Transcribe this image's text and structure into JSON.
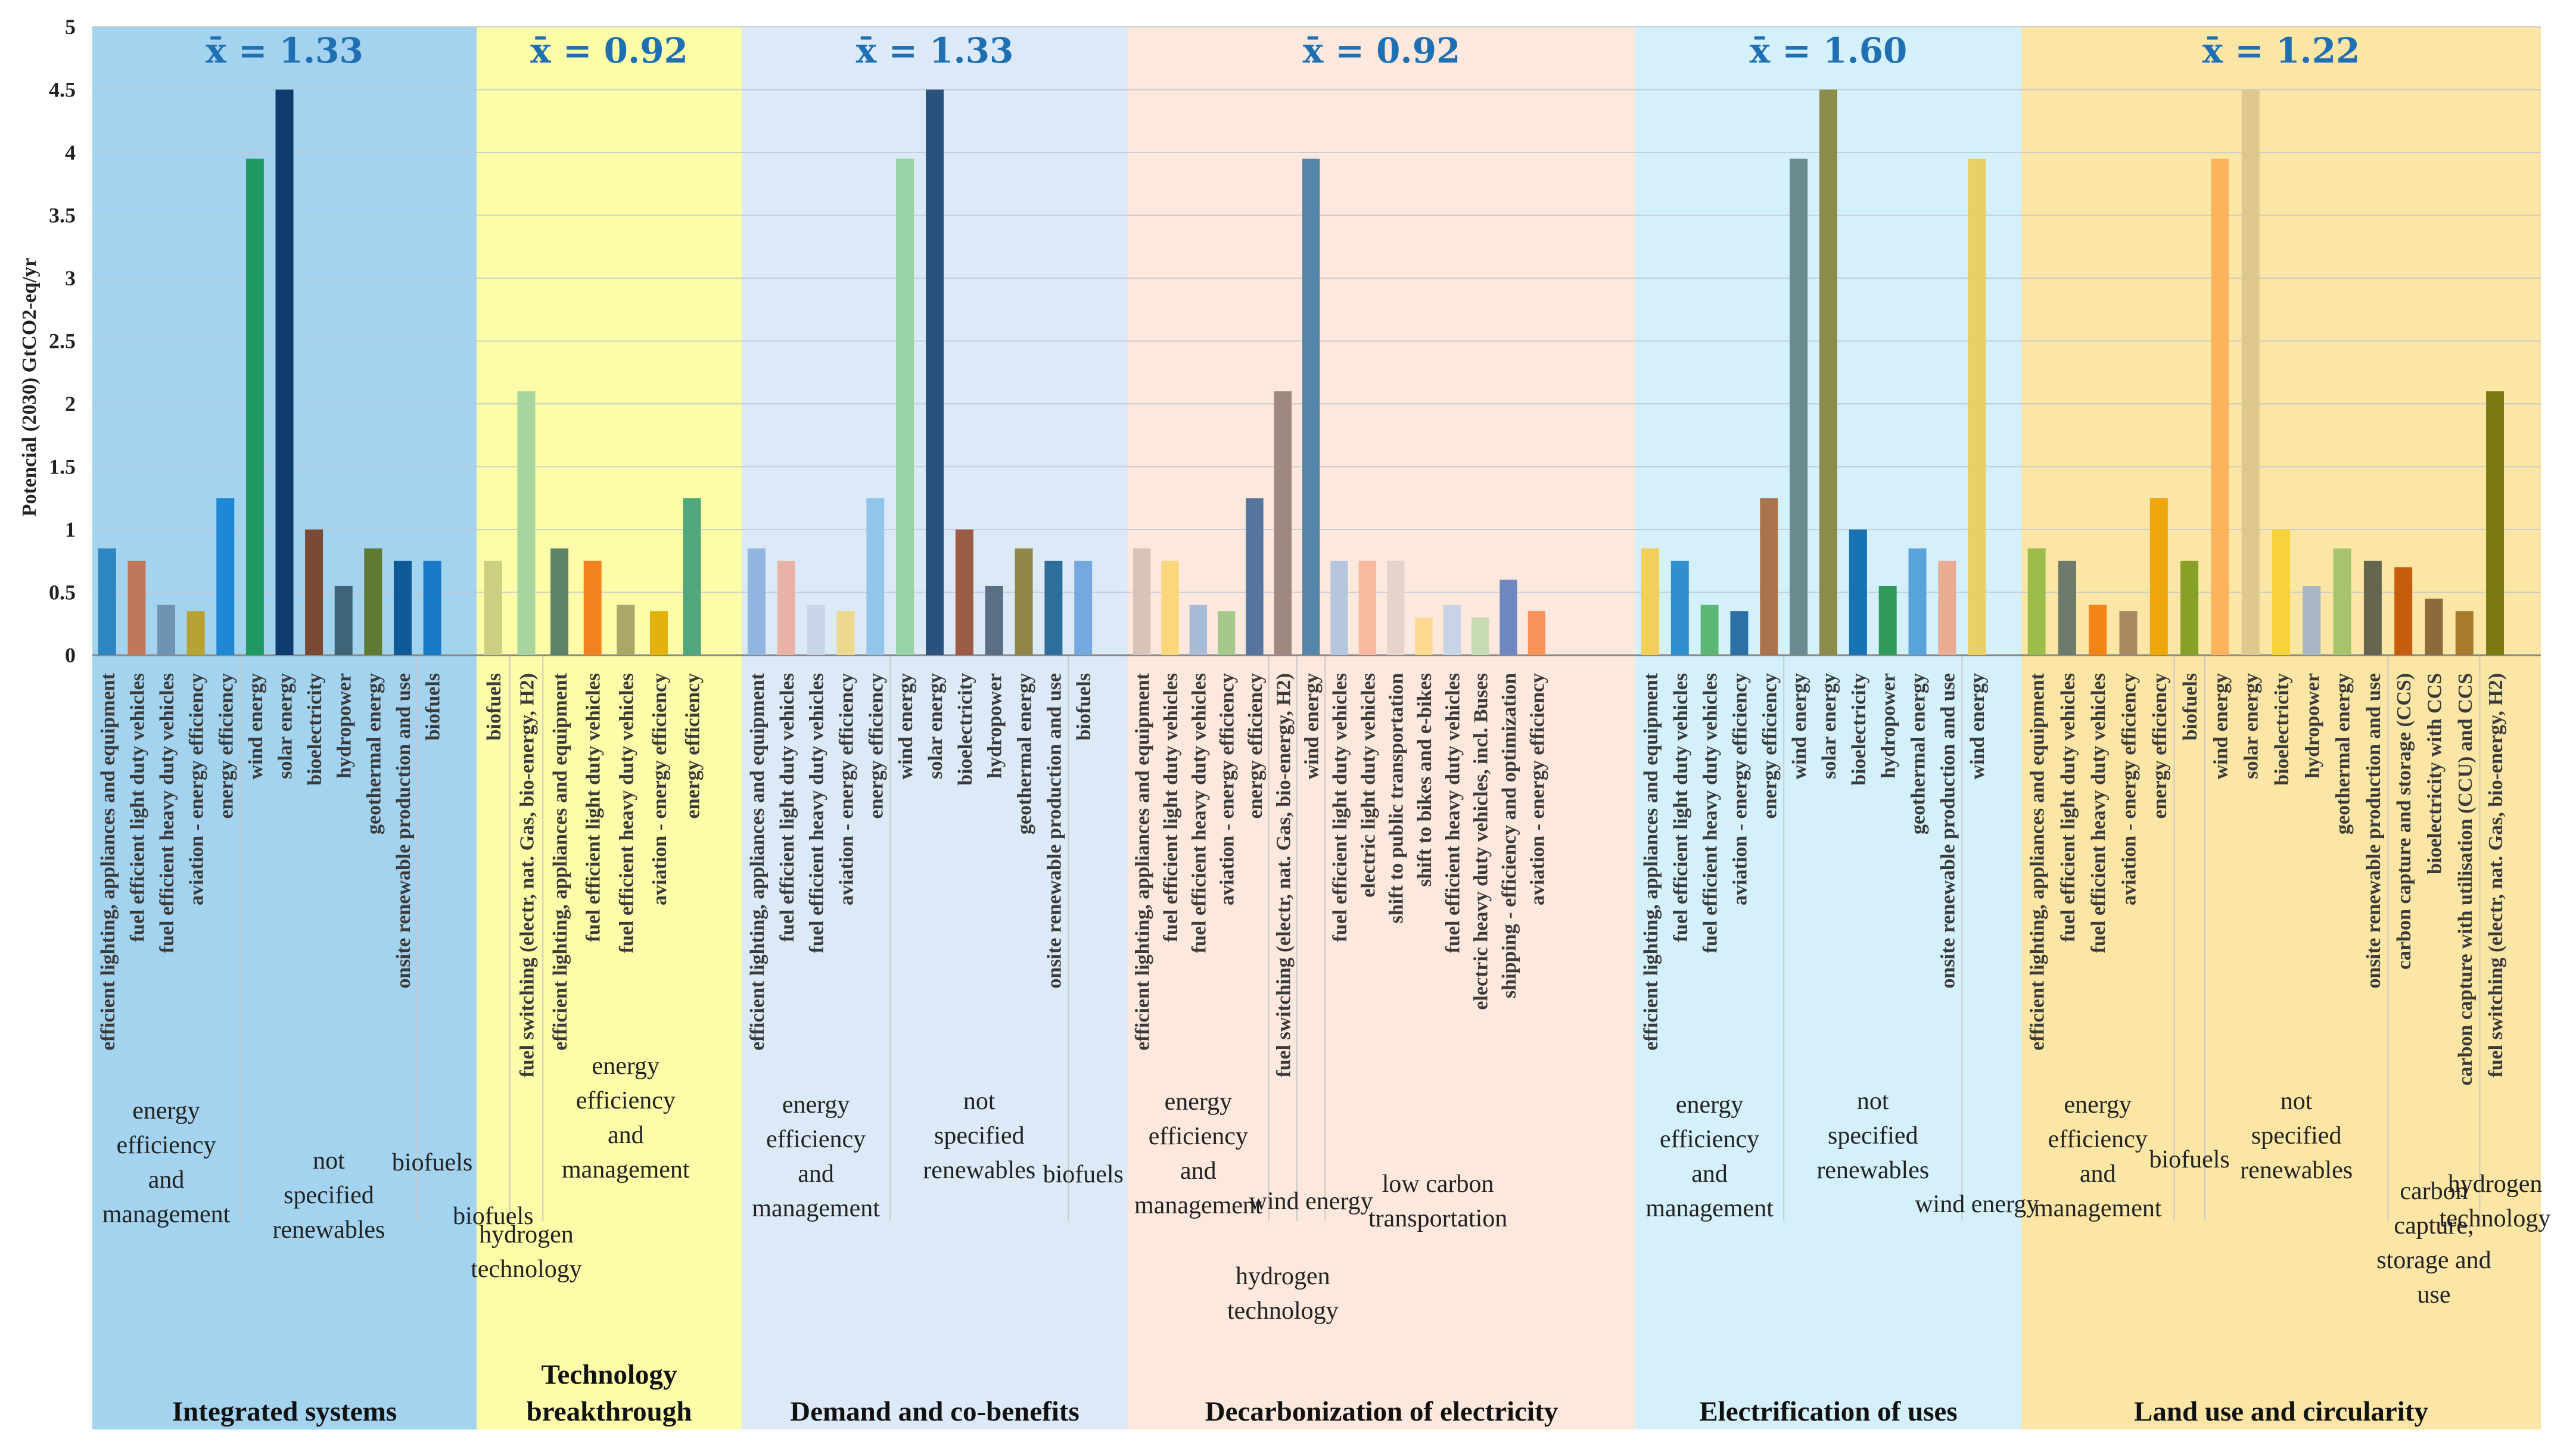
{
  "chart_data": {
    "type": "bar",
    "ylabel": "Potencial (2030) GtCO2-eq/yr",
    "ylim": [
      0,
      5
    ],
    "yticks": [
      "0",
      "0.5",
      "1",
      "1.5",
      "2",
      "2.5",
      "3",
      "3.5",
      "4",
      "4.5",
      "5"
    ],
    "grid": true,
    "panels": [
      {
        "title": "Integrated systems",
        "mean": "x̄ = 1.33",
        "bg": "#a3d3ef",
        "groups": [
          {
            "name": "energy efficiency and management",
            "bars": [
              {
                "label": "efficient lighting, appliances and equipment",
                "value": 0.85,
                "color": "#2e86c1"
              },
              {
                "label": "fuel efficient light duty vehicles",
                "value": 0.75,
                "color": "#c0775a"
              },
              {
                "label": "fuel efficient heavy duty vehicles",
                "value": 0.4,
                "color": "#6f93b3"
              },
              {
                "label": "aviation - energy efficiency",
                "value": 0.35,
                "color": "#b7a233"
              },
              {
                "label": "energy efficiency",
                "value": 1.25,
                "color": "#1e88d4"
              }
            ]
          },
          {
            "name": "not specified renewables",
            "bars": [
              {
                "label": "wind energy",
                "value": 3.95,
                "color": "#1e9a63"
              },
              {
                "label": "solar energy",
                "value": 4.5,
                "color": "#0e3a6e"
              },
              {
                "label": "bioelectricity",
                "value": 1.0,
                "color": "#7a4a34"
              },
              {
                "label": "hydropower",
                "value": 0.55,
                "color": "#3d6478"
              },
              {
                "label": "geothermal energy",
                "value": 0.85,
                "color": "#5f7a32"
              },
              {
                "label": "onsite renewable production and use",
                "value": 0.75,
                "color": "#0d5a94"
              }
            ]
          },
          {
            "name": "biofuels",
            "bars": [
              {
                "label": "biofuels",
                "value": 0.75,
                "color": "#1a7ac8"
              }
            ]
          }
        ]
      },
      {
        "title": "Technology breakthrough",
        "mean": "x̄ = 0.92",
        "bg": "#fdfca8",
        "groups": [
          {
            "name": "biofuels",
            "bars": [
              {
                "label": "biofuels",
                "value": 0.75,
                "color": "#cccf80"
              }
            ]
          },
          {
            "name": "hydrogen technology",
            "bars": [
              {
                "label": "fuel switching (electr, nat. Gas, bio-energy, H2)",
                "value": 2.1,
                "color": "#a6d6a0"
              }
            ]
          },
          {
            "name": "energy efficiency and management",
            "bars": [
              {
                "label": "efficient lighting, appliances and equipment",
                "value": 0.85,
                "color": "#5e8468"
              },
              {
                "label": "fuel efficient light duty vehicles",
                "value": 0.75,
                "color": "#f58220"
              },
              {
                "label": "fuel efficient heavy duty vehicles",
                "value": 0.4,
                "color": "#a9a869"
              },
              {
                "label": "aviation - energy efficiency",
                "value": 0.35,
                "color": "#e3b20e"
              },
              {
                "label": "energy efficiency",
                "value": 1.25,
                "color": "#4fa77b"
              }
            ]
          }
        ]
      },
      {
        "title": "Demand and co-benefits",
        "mean": "x̄ = 1.33",
        "bg": "#dceaf7",
        "groups": [
          {
            "name": "energy efficiency and management",
            "bars": [
              {
                "label": "efficient lighting, appliances and equipment",
                "value": 0.85,
                "color": "#8fb5e0"
              },
              {
                "label": "fuel efficient light duty vehicles",
                "value": 0.75,
                "color": "#e8b3a6"
              },
              {
                "label": "fuel efficient heavy duty vehicles",
                "value": 0.4,
                "color": "#c9d6e8"
              },
              {
                "label": "aviation - energy efficiency",
                "value": 0.35,
                "color": "#ecd88e"
              },
              {
                "label": "energy efficiency",
                "value": 1.25,
                "color": "#93c5ea"
              }
            ]
          },
          {
            "name": "not specified renewables",
            "bars": [
              {
                "label": "wind energy",
                "value": 3.95,
                "color": "#97d3a6"
              },
              {
                "label": "solar energy",
                "value": 4.5,
                "color": "#2a527c"
              },
              {
                "label": "bioelectricity",
                "value": 1.0,
                "color": "#9c5b45"
              },
              {
                "label": "hydropower",
                "value": 0.55,
                "color": "#5a6e84"
              },
              {
                "label": "geothermal energy",
                "value": 0.85,
                "color": "#8f8647"
              },
              {
                "label": "onsite renewable production and use",
                "value": 0.75,
                "color": "#2e6d9c"
              }
            ]
          },
          {
            "name": "biofuels",
            "bars": [
              {
                "label": "biofuels",
                "value": 0.75,
                "color": "#76a8e0"
              }
            ]
          }
        ]
      },
      {
        "title": "Decarbonization of electricity",
        "mean": "x̄ = 0.92",
        "bg": "#fde8dd",
        "groups": [
          {
            "name": "energy efficiency and management",
            "bars": [
              {
                "label": "efficient lighting, appliances and equipment",
                "value": 0.85,
                "color": "#d9c2b8"
              },
              {
                "label": "fuel efficient light duty vehicles",
                "value": 0.75,
                "color": "#fbd77c"
              },
              {
                "label": "fuel efficient heavy duty vehicles",
                "value": 0.4,
                "color": "#a8bcd8"
              },
              {
                "label": "aviation - energy efficiency",
                "value": 0.35,
                "color": "#a7c88d"
              },
              {
                "label": "energy efficiency",
                "value": 1.25,
                "color": "#56749e"
              }
            ]
          },
          {
            "name": "hydrogen technology",
            "bars": [
              {
                "label": "fuel switching (electr, nat. Gas, bio-energy, H2)",
                "value": 2.1,
                "color": "#a08880"
              }
            ]
          },
          {
            "name": "wind energy",
            "bars": [
              {
                "label": "wind energy",
                "value": 3.95,
                "color": "#5585a8"
              }
            ]
          },
          {
            "name": "low carbon transportation",
            "bars": [
              {
                "label": "fuel efficient light duty vehicles",
                "value": 0.75,
                "color": "#b7c6df"
              },
              {
                "label": "electric light duty vehicles",
                "value": 0.75,
                "color": "#f9b9a0"
              },
              {
                "label": "shift to public transportation",
                "value": 0.75,
                "color": "#e6d3cb"
              },
              {
                "label": "shift to bikes and e-bikes",
                "value": 0.3,
                "color": "#fbd990"
              },
              {
                "label": "fuel efficient heavy duty vehicles",
                "value": 0.4,
                "color": "#c7d3e6"
              },
              {
                "label": "electric heavy duty vehicles, incl. Buses",
                "value": 0.3,
                "color": "#c8dcb4"
              },
              {
                "label": "shipping - efficiency and optimization",
                "value": 0.6,
                "color": "#6f86c0"
              },
              {
                "label": "aviation - energy efficiency",
                "value": 0.35,
                "color": "#f7925a"
              }
            ]
          }
        ]
      },
      {
        "title": "Electrification of uses",
        "mean": "x̄ = 1.60",
        "bg": "#d3f0fb",
        "groups": [
          {
            "name": "energy efficiency and management",
            "bars": [
              {
                "label": "efficient lighting, appliances and equipment",
                "value": 0.85,
                "color": "#f2cf5a"
              },
              {
                "label": "fuel efficient light duty vehicles",
                "value": 0.75,
                "color": "#2f8fcf"
              },
              {
                "label": "fuel efficient heavy duty vehicles",
                "value": 0.4,
                "color": "#5bb874"
              },
              {
                "label": "aviation - energy efficiency",
                "value": 0.35,
                "color": "#2c70a8"
              },
              {
                "label": "energy efficiency",
                "value": 1.25,
                "color": "#a9734e"
              }
            ]
          },
          {
            "name": "not specified renewables",
            "bars": [
              {
                "label": "wind energy",
                "value": 3.95,
                "color": "#6a8b90"
              },
              {
                "label": "solar energy",
                "value": 4.5,
                "color": "#8b8b4a"
              },
              {
                "label": "bioelectricity",
                "value": 1.0,
                "color": "#1773b3"
              },
              {
                "label": "hydropower",
                "value": 0.55,
                "color": "#2f9a5a"
              },
              {
                "label": "geothermal energy",
                "value": 0.85,
                "color": "#5aa4dc"
              },
              {
                "label": "onsite renewable production and use",
                "value": 0.75,
                "color": "#e9ab92"
              }
            ]
          },
          {
            "name": "wind energy",
            "bars": [
              {
                "label": "wind energy",
                "value": 3.95,
                "color": "#e8d066"
              }
            ]
          }
        ]
      },
      {
        "title": "Land use and circularity",
        "mean": "x̄ = 1.22",
        "bg": "#fbe6a6",
        "groups": [
          {
            "name": "energy efficiency and management",
            "bars": [
              {
                "label": "efficient lighting, appliances and equipment",
                "value": 0.85,
                "color": "#9bbd4a"
              },
              {
                "label": "fuel efficient light duty vehicles",
                "value": 0.75,
                "color": "#6e7a6c"
              },
              {
                "label": "fuel efficient heavy duty vehicles",
                "value": 0.4,
                "color": "#f28418"
              },
              {
                "label": "aviation - energy efficiency",
                "value": 0.35,
                "color": "#a88a62"
              },
              {
                "label": "energy efficiency",
                "value": 1.25,
                "color": "#eea60c"
              }
            ]
          },
          {
            "name": "biofuels",
            "bars": [
              {
                "label": "biofuels",
                "value": 0.75,
                "color": "#87a028"
              }
            ]
          },
          {
            "name": "not specified renewables",
            "bars": [
              {
                "label": "wind energy",
                "value": 3.95,
                "color": "#fbb45c"
              },
              {
                "label": "solar energy",
                "value": 4.5,
                "color": "#dfc88e"
              },
              {
                "label": "bioelectricity",
                "value": 1.0,
                "color": "#f7d23c"
              },
              {
                "label": "hydropower",
                "value": 0.55,
                "color": "#aab6c4"
              },
              {
                "label": "geothermal energy",
                "value": 0.85,
                "color": "#a7c46c"
              },
              {
                "label": "onsite renewable production and use",
                "value": 0.75,
                "color": "#66664e"
              }
            ]
          },
          {
            "name": "carbon capture, storage and use",
            "bars": [
              {
                "label": "carbon capture and storage (CCS)",
                "value": 0.7,
                "color": "#c65d0a"
              },
              {
                "label": "bioelectricity with CCS",
                "value": 0.45,
                "color": "#8c6a3c"
              },
              {
                "label": "carbon capture with utilisation (CCU) and CCS",
                "value": 0.35,
                "color": "#a87b2c"
              }
            ]
          },
          {
            "name": "hydrogen technology",
            "bars": [
              {
                "label": "fuel switching (electr, nat. Gas, bio-energy, H2)",
                "value": 2.1,
                "color": "#7a7a10"
              }
            ]
          }
        ]
      }
    ]
  }
}
